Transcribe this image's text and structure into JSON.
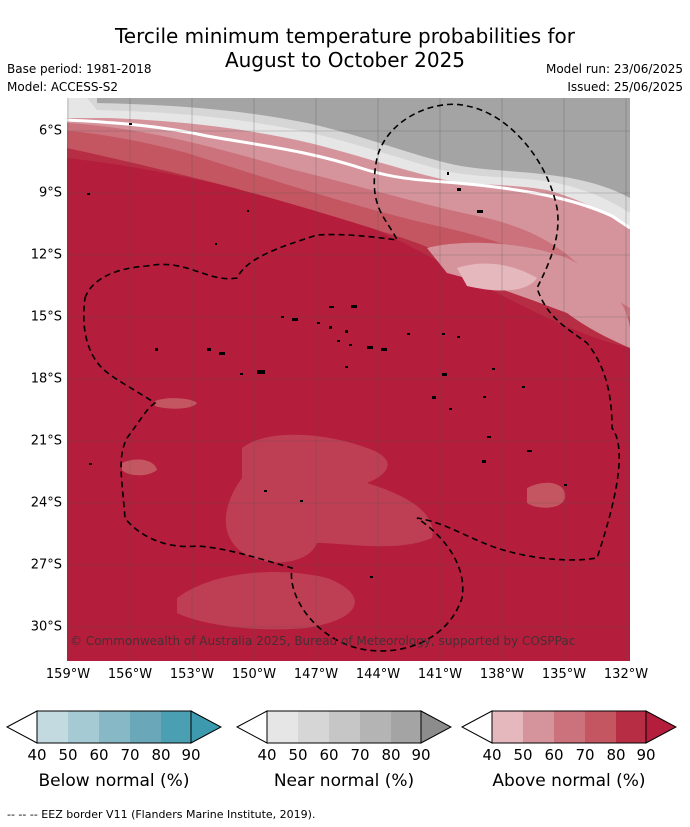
{
  "title_line1": "Tercile minimum temperature probabilities for",
  "title_line2": "August to October 2025",
  "base_period": "Base period: 1981-2018",
  "model": "Model: ACCESS-S2",
  "model_run": "Model run: 23/06/2025",
  "issued": "Issued: 25/06/2025",
  "lat_labels": [
    "6°S",
    "9°S",
    "12°S",
    "15°S",
    "18°S",
    "21°S",
    "24°S",
    "27°S",
    "30°S"
  ],
  "lon_labels": [
    "159°W",
    "156°W",
    "153°W",
    "150°W",
    "147°W",
    "144°W",
    "141°W",
    "138°W",
    "135°W",
    "132°W"
  ],
  "copyright": "© Commonwealth of Australia 2025, Bureau of Meteorology, supported by COSPPac",
  "colorbars": [
    {
      "label": "Below normal (%)",
      "ticks": [
        "40",
        "50",
        "60",
        "70",
        "80",
        "90"
      ],
      "colors": [
        "#c2dae0",
        "#a6cad3",
        "#87b8c6",
        "#6aa8b9",
        "#4aa0b2"
      ],
      "extend_color": "#3d9aae"
    },
    {
      "label": "Near normal (%)",
      "ticks": [
        "40",
        "50",
        "60",
        "70",
        "80",
        "90"
      ],
      "colors": [
        "#e6e6e6",
        "#d6d6d6",
        "#c6c6c6",
        "#b4b4b4",
        "#a4a4a4"
      ],
      "extend_color": "#8c8c8c"
    },
    {
      "label": "Above normal (%)",
      "ticks": [
        "40",
        "50",
        "60",
        "70",
        "80",
        "90"
      ],
      "colors": [
        "#e5b8be",
        "#d5949c",
        "#cb727c",
        "#c45661",
        "#b72e44"
      ],
      "extend_color": "#b41d3b"
    }
  ],
  "footer": "--  --  -- EEZ border V11 (Flanders Marine Institute, 2019)."
}
